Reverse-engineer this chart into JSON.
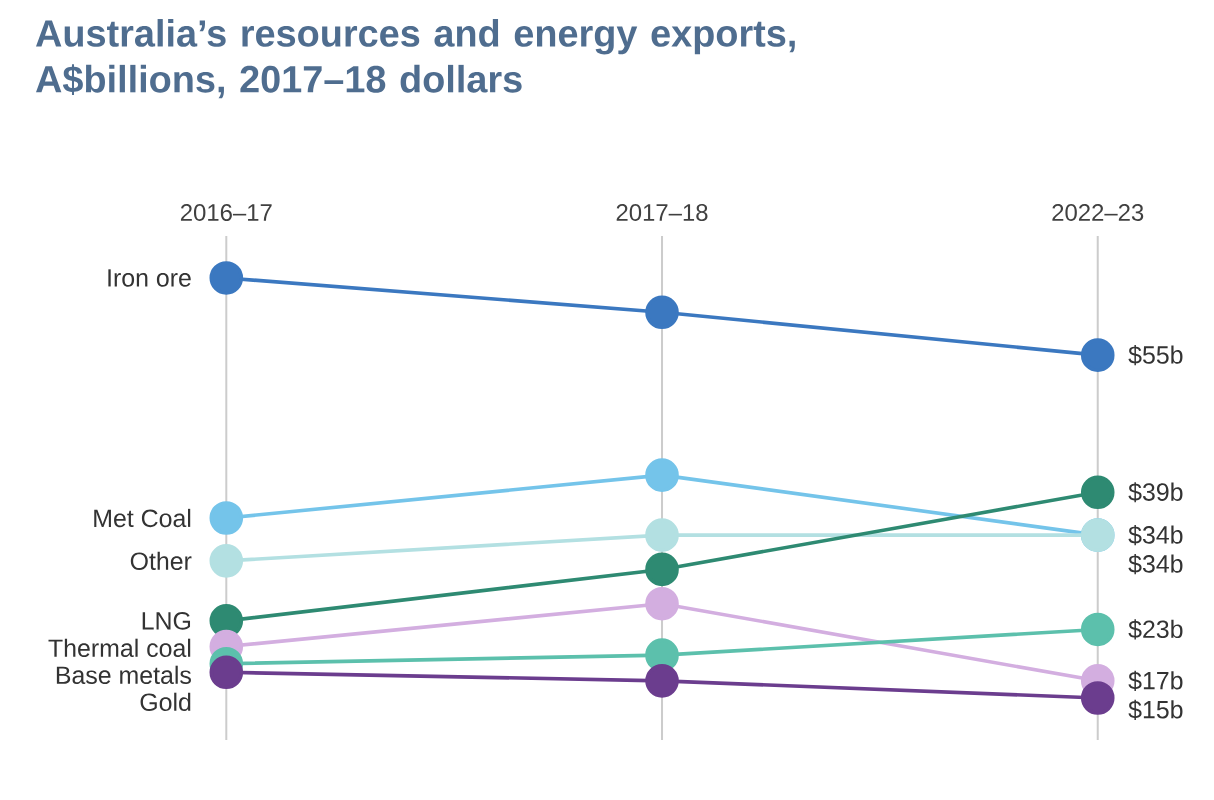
{
  "chart_data": {
    "type": "line",
    "title": "Australia’s resources and energy exports, A$billions, 2017–18 dollars",
    "categories": [
      "2016–17",
      "2017–18",
      "2022–23"
    ],
    "grid": "x",
    "marker": "circle",
    "tick_labels": "x",
    "series": [
      {
        "name": "Iron ore",
        "color": "#3b78c0",
        "values": [
          64,
          60,
          55
        ],
        "value_labels": [
          null,
          null,
          "$55b"
        ]
      },
      {
        "name": "Met Coal",
        "color": "#74c4ea",
        "values": [
          36,
          41,
          34
        ],
        "value_labels": [
          null,
          null,
          "$34b"
        ]
      },
      {
        "name": "Other",
        "color": "#b3e0e2",
        "values": [
          31,
          34,
          34
        ],
        "value_labels": [
          null,
          null,
          "$34b"
        ]
      },
      {
        "name": "LNG",
        "color": "#2e8a72",
        "values": [
          24,
          30,
          39
        ],
        "value_labels": [
          null,
          null,
          "$39b"
        ]
      },
      {
        "name": "Thermal coal",
        "color": "#d3aee0",
        "values": [
          21,
          26,
          17
        ],
        "value_labels": [
          null,
          null,
          "$17b"
        ]
      },
      {
        "name": "Base metals",
        "color": "#5cc0ac",
        "values": [
          19,
          20,
          23
        ],
        "value_labels": [
          null,
          null,
          "$23b"
        ]
      },
      {
        "name": "Gold",
        "color": "#6b3d8e",
        "values": [
          18,
          17,
          15
        ],
        "value_labels": [
          null,
          null,
          "$15b"
        ]
      }
    ]
  }
}
